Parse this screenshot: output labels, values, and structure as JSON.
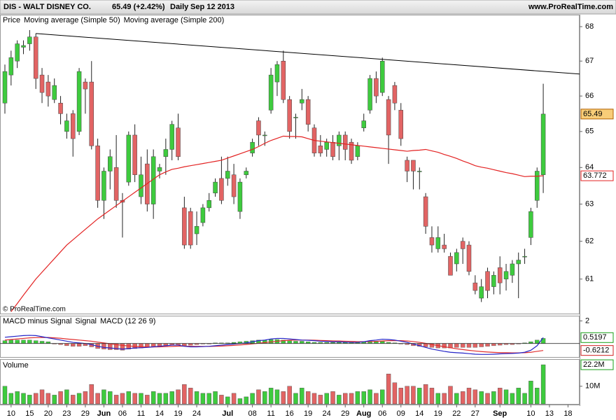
{
  "chart_data": [
    {
      "type": "candlestick",
      "header": {
        "symbol": "DIS - WALT DISNEY CO.",
        "quote": "65.49 (+2.42%)",
        "period": "Daily",
        "date": "Sep 12 2013",
        "source": "www.ProRealTime.com"
      },
      "price_label": "Price",
      "copyright": "© ProRealTime.com",
      "up_color": "#3ecb3e",
      "down_color": "#e26464",
      "log_scale": true,
      "ylim": [
        60.1,
        68.33
      ],
      "yticks": [
        61,
        62,
        63,
        64,
        65,
        66,
        67,
        68
      ],
      "open": [
        65.8,
        66.6,
        67.0,
        67.4,
        67.5,
        67.7,
        66.6,
        66.4,
        65.9,
        65.8,
        65.0,
        65.5,
        65.0,
        66.4,
        66.4,
        64.6,
        63.1,
        63.9,
        64.0,
        63.1,
        63.6,
        64.9,
        63.2,
        64.1,
        63.0,
        63.9,
        64.3,
        64.5,
        65.1,
        62.9,
        62.8,
        62.2,
        62.5,
        62.9,
        63.3,
        63.7,
        63.7,
        63.8,
        62.8,
        63.8,
        64.4,
        65.3,
        64.9,
        65.6,
        66.4,
        67.0,
        65.9,
        65.4,
        65.8,
        65.9,
        65.1,
        64.6,
        64.5,
        64.7,
        64.6,
        64.9,
        64.7,
        64.3,
        65.1,
        65.6,
        66.5,
        66.1,
        65.9,
        66.3,
        65.6,
        64.2,
        64.2,
        63.9,
        63.2,
        62.1,
        61.8,
        61.9,
        61.6,
        61.4,
        62.0,
        61.9,
        60.9,
        60.5,
        61.2,
        60.8,
        61.3,
        61.0,
        61.1,
        61.4,
        61.6,
        62.1,
        63.1,
        63.8,
        null,
        null,
        null,
        null
      ],
      "high": [
        66.9,
        67.3,
        67.6,
        67.6,
        67.9,
        67.8,
        66.8,
        66.6,
        66.5,
        66.0,
        65.5,
        65.6,
        66.8,
        66.5,
        67.0,
        64.8,
        64.0,
        64.5,
        64.9,
        63.3,
        65.0,
        65.2,
        64.3,
        64.5,
        64.5,
        64.1,
        64.8,
        65.3,
        65.5,
        63.2,
        62.9,
        62.8,
        63.0,
        63.3,
        63.7,
        64.3,
        64.3,
        64.1,
        63.7,
        64.0,
        64.8,
        65.4,
        65.0,
        66.8,
        67.0,
        67.3,
        66.0,
        65.5,
        66.2,
        66.0,
        65.2,
        64.9,
        64.8,
        64.9,
        65.0,
        65.0,
        64.8,
        64.7,
        65.5,
        66.6,
        66.7,
        67.1,
        66.0,
        66.4,
        65.8,
        64.3,
        64.2,
        64.0,
        63.3,
        62.4,
        62.4,
        62.2,
        61.7,
        61.8,
        62.1,
        62.0,
        61.1,
        61.0,
        61.3,
        61.2,
        61.6,
        61.4,
        61.5,
        61.7,
        61.8,
        62.9,
        64.0,
        66.35,
        null,
        null,
        null,
        null
      ],
      "low": [
        65.5,
        66.3,
        66.8,
        67.2,
        67.3,
        66.2,
        65.8,
        65.7,
        65.8,
        65.2,
        64.8,
        64.3,
        64.9,
        65.5,
        64.5,
        62.9,
        62.6,
        63.4,
        62.9,
        62.1,
        63.5,
        63.6,
        63.0,
        62.8,
        62.6,
        63.7,
        63.8,
        64.2,
        64.2,
        61.8,
        61.8,
        61.9,
        62.4,
        62.8,
        63.2,
        63.0,
        63.5,
        63.0,
        62.6,
        63.7,
        64.3,
        64.6,
        64.6,
        65.5,
        66.0,
        65.8,
        64.8,
        64.8,
        65.6,
        65.0,
        64.3,
        64.3,
        64.3,
        64.2,
        64.2,
        64.2,
        64.1,
        64.2,
        65.0,
        65.5,
        65.8,
        66.0,
        64.1,
        65.6,
        64.6,
        63.6,
        63.4,
        63.4,
        62.2,
        61.7,
        61.7,
        61.7,
        61.1,
        61.2,
        61.4,
        61.1,
        60.6,
        60.4,
        60.5,
        60.6,
        60.6,
        60.7,
        60.9,
        60.5,
        61.4,
        61.9,
        62.9,
        63.3,
        null,
        null,
        null,
        null
      ],
      "close": [
        66.7,
        67.1,
        67.5,
        67.45,
        67.7,
        66.5,
        66.1,
        66.0,
        66.3,
        65.5,
        65.3,
        64.8,
        66.7,
        66.2,
        64.6,
        63.1,
        63.9,
        64.3,
        63.1,
        63.05,
        64.9,
        63.8,
        63.8,
        63.0,
        64.3,
        64.0,
        64.5,
        65.2,
        64.3,
        61.9,
        61.9,
        62.4,
        62.9,
        63.1,
        63.6,
        63.1,
        63.9,
        63.2,
        63.6,
        63.9,
        64.7,
        64.9,
        64.9,
        66.6,
        66.9,
        65.9,
        65.0,
        65.4,
        65.9,
        65.2,
        64.4,
        64.4,
        64.7,
        64.3,
        64.9,
        64.5,
        64.2,
        64.6,
        65.3,
        66.5,
        66.0,
        67.0,
        64.9,
        65.8,
        64.8,
        63.9,
        63.9,
        63.9,
        62.4,
        61.9,
        62.1,
        61.8,
        61.1,
        61.7,
        61.8,
        61.2,
        60.7,
        60.8,
        60.7,
        61.1,
        60.9,
        61.2,
        61.4,
        61.5,
        61.6,
        62.8,
        63.9,
        65.49,
        null,
        null,
        null,
        null
      ],
      "series": [
        {
          "name": "Moving average (Simple 50)",
          "color": "#e32222",
          "values": [
            null,
            60.15,
            60.36,
            60.58,
            60.79,
            61.0,
            61.18,
            61.36,
            61.54,
            61.72,
            61.9,
            62.04,
            62.18,
            62.32,
            62.46,
            62.6,
            62.72,
            62.84,
            62.96,
            63.08,
            63.2,
            63.32,
            63.44,
            63.56,
            63.68,
            63.8,
            63.88,
            63.95,
            63.98,
            64.02,
            64.05,
            64.08,
            64.11,
            64.14,
            64.17,
            64.2,
            64.26,
            64.32,
            64.38,
            64.44,
            64.5,
            64.58,
            64.67,
            64.75,
            64.81,
            64.87,
            64.86,
            64.86,
            64.85,
            64.8,
            64.75,
            64.73,
            64.71,
            64.69,
            64.67,
            64.65,
            64.63,
            64.61,
            64.59,
            64.57,
            64.55,
            64.53,
            64.51,
            64.49,
            64.47,
            64.45,
            64.47,
            64.48,
            64.5,
            64.46,
            64.42,
            64.36,
            64.31,
            64.25,
            64.18,
            64.12,
            64.05,
            64.01,
            63.98,
            63.94,
            63.9,
            63.86,
            63.83,
            63.79,
            63.75,
            63.76,
            63.76,
            63.772,
            null,
            null,
            null,
            null
          ]
        },
        {
          "name": "Moving average (Simple 200)",
          "color": "#16a34a"
        }
      ],
      "trendline": {
        "x": [
          5,
          61
        ],
        "values": [
          67.8,
          67.05
        ]
      }
    },
    {
      "type": "macd",
      "ylim": [
        -1.2,
        2.4
      ],
      "yticks": [
        2
      ],
      "series": [
        {
          "name": "MACD minus Signal",
          "style": "bar",
          "color": "#5a6a8a",
          "up_color": "#3ecb3e",
          "down_color": "#e26464",
          "values": [
            0.25,
            0.3,
            0.3,
            0.3,
            0.3,
            0.25,
            0.2,
            0.15,
            -0.05,
            -0.1,
            -0.2,
            -0.25,
            -0.25,
            -0.2,
            -0.3,
            -0.45,
            -0.5,
            -0.55,
            -0.55,
            -0.6,
            -0.5,
            -0.45,
            -0.4,
            -0.35,
            -0.3,
            -0.25,
            -0.2,
            -0.15,
            -0.15,
            -0.2,
            -0.15,
            -0.1,
            -0.05,
            -0.05,
            0.05,
            0.05,
            0.05,
            0.1,
            0.15,
            0.2,
            0.25,
            0.3,
            0.3,
            0.35,
            0.35,
            0.3,
            0.25,
            0.2,
            0.2,
            0.15,
            0.1,
            0.1,
            0.1,
            0.1,
            0.1,
            0.1,
            0.1,
            0.1,
            0.15,
            0.2,
            0.2,
            0.2,
            0.1,
            0.05,
            -0.05,
            -0.1,
            -0.2,
            -0.25,
            -0.3,
            -0.35,
            -0.4,
            -0.4,
            -0.4,
            -0.35,
            -0.35,
            -0.35,
            -0.35,
            -0.3,
            -0.25,
            -0.2,
            -0.15,
            -0.1,
            -0.1,
            -0.05,
            0.05,
            0.15,
            0.3,
            0.45,
            null,
            null,
            null,
            null
          ]
        },
        {
          "name": "Signal",
          "style": "line",
          "color": "#e03030",
          "values": [
            0.3,
            0.35,
            0.4,
            0.45,
            0.5,
            0.52,
            0.53,
            0.53,
            0.5,
            0.46,
            0.4,
            0.35,
            0.3,
            0.25,
            0.2,
            0.12,
            0.05,
            -0.03,
            -0.1,
            -0.17,
            -0.22,
            -0.26,
            -0.29,
            -0.31,
            -0.31,
            -0.3,
            -0.28,
            -0.26,
            -0.24,
            -0.24,
            -0.25,
            -0.26,
            -0.26,
            -0.26,
            -0.25,
            -0.23,
            -0.2,
            -0.17,
            -0.13,
            -0.09,
            -0.04,
            0.02,
            0.08,
            0.14,
            0.2,
            0.25,
            0.28,
            0.3,
            0.3,
            0.3,
            0.29,
            0.27,
            0.25,
            0.23,
            0.22,
            0.2,
            0.18,
            0.16,
            0.16,
            0.17,
            0.19,
            0.22,
            0.25,
            0.26,
            0.25,
            0.22,
            0.17,
            0.1,
            0.01,
            -0.09,
            -0.19,
            -0.29,
            -0.38,
            -0.47,
            -0.54,
            -0.61,
            -0.67,
            -0.72,
            -0.76,
            -0.79,
            -0.81,
            -0.82,
            -0.83,
            -0.83,
            -0.82,
            -0.78,
            -0.7,
            -0.6212,
            null,
            null,
            null,
            null
          ]
        },
        {
          "name": "MACD (12 26 9)",
          "style": "line",
          "color": "#2424c8",
          "values": [
            0.55,
            0.6,
            0.65,
            0.7,
            0.72,
            0.7,
            0.6,
            0.5,
            0.4,
            0.3,
            0.2,
            0.1,
            0.05,
            0.0,
            -0.1,
            -0.25,
            -0.35,
            -0.4,
            -0.45,
            -0.5,
            -0.45,
            -0.4,
            -0.38,
            -0.35,
            -0.3,
            -0.25,
            -0.2,
            -0.15,
            -0.15,
            -0.25,
            -0.3,
            -0.3,
            -0.28,
            -0.25,
            -0.2,
            -0.15,
            -0.1,
            -0.05,
            0.0,
            0.05,
            0.15,
            0.25,
            0.3,
            0.4,
            0.45,
            0.45,
            0.4,
            0.35,
            0.3,
            0.28,
            0.25,
            0.2,
            0.18,
            0.15,
            0.15,
            0.12,
            0.1,
            0.1,
            0.15,
            0.25,
            0.3,
            0.38,
            0.35,
            0.3,
            0.2,
            0.1,
            -0.05,
            -0.2,
            -0.35,
            -0.5,
            -0.6,
            -0.7,
            -0.78,
            -0.82,
            -0.85,
            -0.9,
            -0.95,
            -0.97,
            -0.97,
            -0.95,
            -0.92,
            -0.9,
            -0.88,
            -0.85,
            -0.78,
            -0.6,
            -0.2,
            0.5197,
            null,
            null,
            null,
            null
          ]
        }
      ]
    },
    {
      "type": "bar",
      "title": "Volume",
      "ylim": [
        0,
        25000000
      ],
      "yticks": [
        {
          "value": 10000000,
          "label": "10M"
        }
      ],
      "categories": [
        null,
        "10",
        null,
        null,
        "15",
        null,
        null,
        "20",
        null,
        null,
        "23",
        null,
        null,
        "29",
        null,
        null,
        "Jun",
        null,
        null,
        "06",
        null,
        null,
        "11",
        null,
        null,
        "14",
        null,
        null,
        "19",
        null,
        null,
        "24",
        null,
        null,
        null,
        null,
        "Jul",
        null,
        null,
        null,
        "08",
        null,
        null,
        "11",
        null,
        null,
        "16",
        null,
        null,
        "19",
        null,
        null,
        "24",
        null,
        null,
        "29",
        null,
        null,
        "Aug",
        null,
        null,
        "06",
        null,
        null,
        "09",
        null,
        null,
        "14",
        null,
        null,
        "19",
        null,
        null,
        "22",
        null,
        null,
        "27",
        null,
        null,
        null,
        "Sep",
        null,
        null,
        null,
        null,
        "10",
        null,
        null,
        "13",
        null,
        null,
        "18"
      ],
      "values": [
        10000000,
        6000000,
        7000000,
        6000000,
        5000000,
        6000000,
        8000000,
        6000000,
        5000000,
        7000000,
        8000000,
        5000000,
        6000000,
        7000000,
        11000000,
        6000000,
        8000000,
        7000000,
        5000000,
        6000000,
        7000000,
        6000000,
        6000000,
        5000000,
        7000000,
        6000000,
        6000000,
        7000000,
        8000000,
        11000000,
        9000000,
        7000000,
        6000000,
        6000000,
        7000000,
        5000000,
        4000000,
        6000000,
        3000000,
        4000000,
        6000000,
        8000000,
        7000000,
        9000000,
        8000000,
        7000000,
        10000000,
        6000000,
        9000000,
        7000000,
        6000000,
        5000000,
        6000000,
        7000000,
        5000000,
        6000000,
        6000000,
        7000000,
        7000000,
        8000000,
        6000000,
        8000000,
        17000000,
        12000000,
        9000000,
        10000000,
        10000000,
        9000000,
        11000000,
        9000000,
        6000000,
        6000000,
        10000000,
        6000000,
        7000000,
        9000000,
        8000000,
        7000000,
        6000000,
        7000000,
        9000000,
        8000000,
        6000000,
        9000000,
        6000000,
        13000000,
        9000000,
        22200000,
        null,
        null,
        null,
        null
      ],
      "value_labels": [
        null,
        null,
        null,
        null,
        null,
        null,
        null,
        null,
        null,
        null,
        null,
        null,
        null,
        null,
        null,
        null,
        null,
        null,
        null,
        null,
        null,
        null,
        null,
        null,
        null,
        null,
        null,
        null,
        null,
        null,
        null,
        null,
        null,
        null,
        null,
        null,
        null,
        null,
        null,
        null,
        null,
        null,
        null,
        null,
        null,
        null,
        null,
        null,
        null,
        null,
        null,
        null,
        null,
        null,
        null,
        null,
        null,
        null,
        null,
        null,
        null,
        null,
        null,
        null,
        null,
        null,
        null,
        null,
        null,
        null,
        null,
        null,
        null,
        null,
        null,
        null,
        null,
        null,
        null,
        null,
        null,
        null,
        null,
        null,
        null,
        null,
        null,
        "22.2M",
        null,
        null,
        null,
        null
      ]
    }
  ]
}
